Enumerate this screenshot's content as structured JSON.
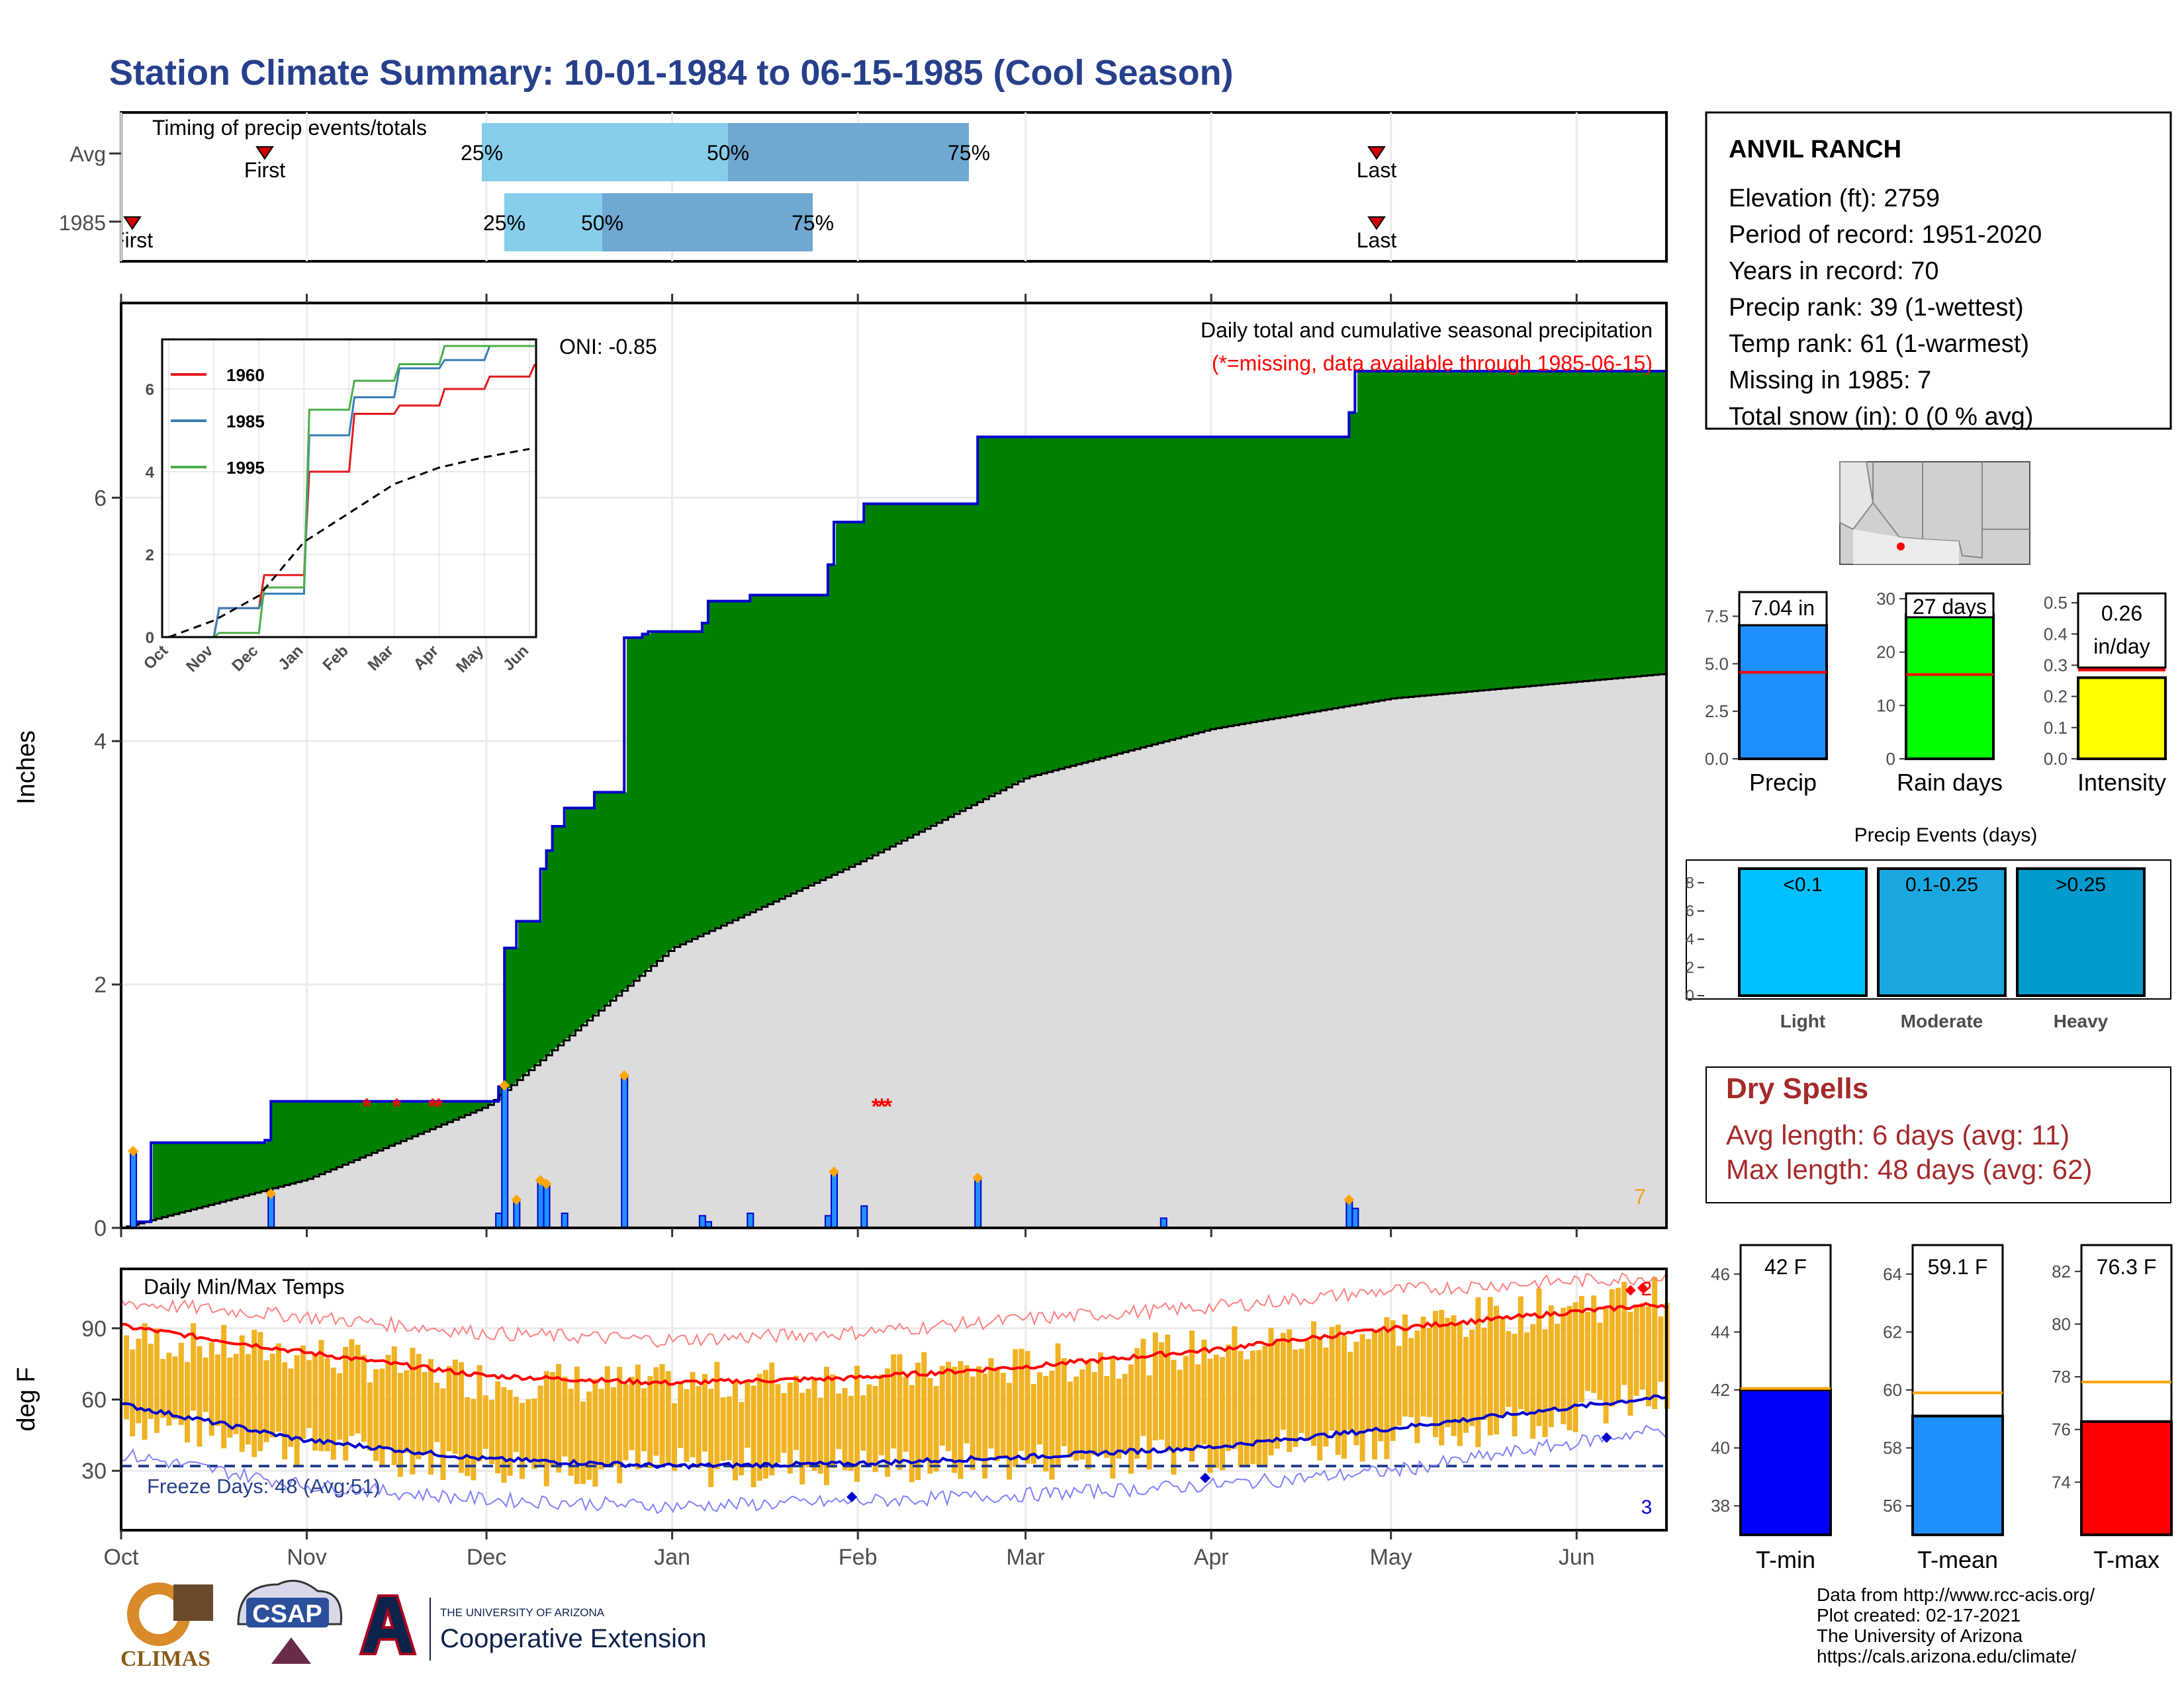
{
  "page": {
    "title": "Station Climate Summary: 10-01-1984 to 06-15-1985 (Cool Season)"
  },
  "timing_panel": {
    "title": "Timing of precip events/totals",
    "row_labels": [
      "Avg",
      "1985"
    ],
    "avg": {
      "first_label": "First",
      "last_label": "Last",
      "p25": "25%",
      "p50": "50%",
      "p75": "75%"
    },
    "year": {
      "first_label": "First",
      "last_label": "Last",
      "p25": "25%",
      "p50": "50%",
      "p75": "75%"
    }
  },
  "precip_panel": {
    "ylabel": "Inches",
    "oni": "ONI: -0.85",
    "caption1": "Daily total and cumulative seasonal precipitation",
    "caption2": "(*=missing, data available through 1985-06-15)",
    "missing_count": "7",
    "month_ticks": [
      "Oct",
      "Nov",
      "Dec",
      "Jan",
      "Feb",
      "Mar",
      "Apr",
      "May",
      "Jun"
    ],
    "y_ticks": [
      "0",
      "2",
      "4",
      "6"
    ]
  },
  "inset": {
    "legend": [
      "1960",
      "1985",
      "1995"
    ],
    "x_ticks": [
      "Oct",
      "Nov",
      "Dec",
      "Jan",
      "Feb",
      "Mar",
      "Apr",
      "May",
      "Jun"
    ],
    "y_ticks": [
      "0",
      "2",
      "4",
      "6"
    ]
  },
  "temp_panel": {
    "ylabel": "deg F",
    "title": "Daily Min/Max Temps",
    "freeze": "Freeze Days: 48 (Avg:51)",
    "count_top": "2",
    "count_bottom": "3",
    "y_ticks": [
      "30",
      "60",
      "90"
    ]
  },
  "station": {
    "name": "ANVIL RANCH",
    "lines": [
      "Elevation (ft): 2759",
      "Period of record: 1951-2020",
      "Years in record: 70",
      "Precip rank: 39 (1-wettest)",
      "Temp rank: 61 (1-warmest)",
      "Missing in 1985: 7",
      "Total snow (in): 0 (0 % avg)"
    ]
  },
  "mini_bars": {
    "precip": {
      "label": "Precip",
      "value_text": "7.04 in",
      "value": 7.04,
      "avg": 4.55,
      "max": 8.7,
      "ticks": [
        "0.0",
        "2.5",
        "5.0",
        "7.5"
      ]
    },
    "raindays": {
      "label": "Rain days",
      "value_text": "27 days",
      "value": 27,
      "avg": 15.8,
      "max": 31,
      "ticks": [
        "0",
        "10",
        "20",
        "30"
      ]
    },
    "intensity": {
      "label": "Intensity",
      "value_text": "0.26",
      "value_text2": "in/day",
      "value": 0.26,
      "avg": 0.285,
      "max": 0.53,
      "ticks": [
        "0.0",
        "0.1",
        "0.2",
        "0.3",
        "0.4",
        "0.5"
      ]
    }
  },
  "events": {
    "title": "Precip Events (days)",
    "ticks": [
      "0",
      "2",
      "4",
      "6",
      "8"
    ],
    "bars": [
      {
        "label": "Light",
        "tag": "<0.1",
        "value": 9
      },
      {
        "label": "Moderate",
        "tag": "0.1-0.25",
        "value": 9
      },
      {
        "label": "Heavy",
        "tag": ">0.25",
        "value": 9
      }
    ]
  },
  "dry_spells": {
    "title": "Dry Spells",
    "avg": "Avg length: 6 days (avg: 11)",
    "max": "Max length: 48 days (avg: 62)"
  },
  "temp_bars": {
    "tmin": {
      "label": "T-min",
      "value_text": "42 F",
      "value": 42.0,
      "avg": 42.05,
      "ticks": [
        "38",
        "40",
        "42",
        "44",
        "46"
      ]
    },
    "tmean": {
      "label": "T-mean",
      "value_text": "59.1 F",
      "value": 59.1,
      "avg": 59.9,
      "ticks": [
        "56",
        "58",
        "60",
        "62",
        "64"
      ]
    },
    "tmax": {
      "label": "T-max",
      "value_text": "76.3 F",
      "value": 76.3,
      "avg": 77.8,
      "ticks": [
        "74",
        "76",
        "78",
        "80",
        "82"
      ]
    }
  },
  "footer": {
    "lines": [
      "Data from http://www.rcc-acis.org/",
      "Plot created: 02-17-2021",
      "The University of Arizona",
      "https://cals.arizona.edu/climate/"
    ],
    "logo_climas": "CLIMAS",
    "logo_csap": "CSAP",
    "logo_ua_small": "THE UNIVERSITY OF ARIZONA",
    "logo_ua_big": "Cooperative Extension"
  },
  "colors": {
    "title": "#27408b",
    "green_fill": "#008000",
    "cum_line": "#0000cd",
    "avg_fill": "#dcdcdc",
    "bar_blue": "#1e90ff",
    "tmax_red": "#ff0000",
    "range_orange": "#f0b324",
    "light_blue": "#87ceeb",
    "mid_blue": "#6fa8d1"
  },
  "chart_data": [
    {
      "type": "line",
      "title": "Daily total and cumulative seasonal precipitation",
      "ylabel": "Inches",
      "ylim": [
        0,
        7.5
      ],
      "series": [
        {
          "name": "1985 cumulative",
          "x": [
            "1984-10-01",
            "1984-10-03",
            "1984-10-06",
            "1984-10-25",
            "1984-10-26",
            "1984-12-03",
            "1984-12-04",
            "1984-12-06",
            "1984-12-10",
            "1984-12-11",
            "1984-12-12",
            "1984-12-14",
            "1984-12-19",
            "1984-12-24",
            "1984-12-27",
            "1984-12-28",
            "1985-01-06",
            "1985-01-07",
            "1985-01-14",
            "1985-01-27",
            "1985-01-28",
            "1985-02-02",
            "1985-02-21",
            "1985-04-24",
            "1985-04-25",
            "1985-06-15"
          ],
          "y": [
            0,
            0.05,
            0.7,
            0.72,
            1.04,
            1.16,
            2.3,
            2.52,
            2.95,
            3.1,
            3.3,
            3.45,
            3.58,
            4.85,
            4.88,
            4.9,
            4.97,
            5.15,
            5.2,
            5.45,
            5.8,
            5.95,
            6.5,
            6.7,
            7.04,
            7.04
          ]
        },
        {
          "name": "average cumulative",
          "x": [
            "1984-10-01",
            "1984-11-01",
            "1984-12-01",
            "1985-01-01",
            "1985-02-01",
            "1985-03-01",
            "1985-04-01",
            "1985-05-01",
            "1985-06-15"
          ],
          "y": [
            0,
            0.4,
            1.0,
            2.3,
            3.0,
            3.7,
            4.1,
            4.35,
            4.55
          ]
        }
      ],
      "daily_bars": {
        "x": [
          "1984-10-03",
          "1984-10-26",
          "1984-12-03",
          "1984-12-04",
          "1984-12-06",
          "1984-12-10",
          "1984-12-11",
          "1984-12-14",
          "1984-12-24",
          "1985-01-06",
          "1985-01-07",
          "1985-01-14",
          "1985-01-27",
          "1985-01-28",
          "1985-02-02",
          "1985-02-21",
          "1985-03-24",
          "1985-04-24",
          "1985-04-25"
        ],
        "y": [
          0.62,
          0.27,
          0.12,
          1.16,
          0.22,
          0.38,
          0.35,
          0.12,
          1.24,
          0.1,
          0.05,
          0.12,
          0.1,
          0.45,
          0.18,
          0.4,
          0.08,
          0.22,
          0.16
        ]
      },
      "missing_dates": [
        "1984-11-11",
        "1984-11-16",
        "1984-11-22",
        "1984-11-23",
        "1985-02-04",
        "1985-02-05",
        "1985-02-06"
      ]
    },
    {
      "type": "line",
      "title": "",
      "legend": [
        "1960",
        "1985",
        "1995"
      ],
      "ylim": [
        0,
        7.2
      ],
      "series": [
        {
          "name": "1960",
          "x": [
            "Oct",
            "Nov",
            "Dec",
            "Jan",
            "Feb",
            "Mar",
            "Apr",
            "May",
            "Jun"
          ],
          "y": [
            0,
            0.7,
            1.5,
            4.0,
            5.4,
            5.6,
            6.0,
            6.3,
            6.6
          ]
        },
        {
          "name": "1985",
          "x": [
            "Oct",
            "Nov",
            "Dec",
            "Jan",
            "Feb",
            "Mar",
            "Apr",
            "May",
            "Jun"
          ],
          "y": [
            0,
            0.7,
            1.05,
            4.88,
            5.8,
            6.5,
            6.7,
            7.04,
            7.04
          ]
        },
        {
          "name": "1995",
          "x": [
            "Oct",
            "Nov",
            "Dec",
            "Jan",
            "Feb",
            "Mar",
            "Apr",
            "May",
            "Jun"
          ],
          "y": [
            0,
            0.1,
            1.2,
            5.5,
            6.2,
            6.6,
            7.04,
            7.04,
            7.04
          ]
        },
        {
          "name": "average",
          "x": [
            "Oct",
            "Nov",
            "Dec",
            "Jan",
            "Feb",
            "Mar",
            "Apr",
            "May",
            "Jun"
          ],
          "y": [
            0,
            0.4,
            1.0,
            2.3,
            3.0,
            3.7,
            4.1,
            4.35,
            4.55
          ]
        }
      ]
    },
    {
      "type": "line",
      "title": "Daily Min/Max Temps",
      "ylabel": "deg F",
      "ylim": [
        5,
        115
      ],
      "freeze_threshold": 32,
      "series": [
        {
          "name": "normal max",
          "x": [
            "Oct",
            "Nov",
            "Dec",
            "Jan",
            "Feb",
            "Mar",
            "Apr",
            "May",
            "Jun"
          ],
          "y": [
            91,
            80,
            70,
            67,
            69,
            74,
            81,
            90,
            97
          ]
        },
        {
          "name": "normal min",
          "x": [
            "Oct",
            "Nov",
            "Dec",
            "Jan",
            "Feb",
            "Mar",
            "Apr",
            "May",
            "Jun"
          ],
          "y": [
            58,
            43,
            35,
            32,
            33,
            36,
            40,
            48,
            57
          ]
        },
        {
          "name": "record max",
          "x": [
            "Oct",
            "Nov",
            "Dec",
            "Jan",
            "Feb",
            "Mar",
            "Apr",
            "May",
            "Jun"
          ],
          "y": [
            101,
            95,
            88,
            85,
            88,
            94,
            99,
            106,
            110
          ]
        },
        {
          "name": "record min",
          "x": [
            "Oct",
            "Nov",
            "Dec",
            "Jan",
            "Feb",
            "Mar",
            "Apr",
            "May",
            "Jun"
          ],
          "y": [
            37,
            24,
            18,
            15,
            17,
            20,
            24,
            30,
            42
          ]
        }
      ],
      "range_bars_approx": {
        "x": [
          "Oct",
          "Nov",
          "Dec",
          "Jan",
          "Feb",
          "Mar",
          "Apr",
          "May",
          "Jun"
        ],
        "min": [
          52,
          40,
          33,
          31,
          32,
          34,
          38,
          44,
          55
        ],
        "max": [
          86,
          80,
          68,
          66,
          70,
          74,
          82,
          90,
          100
        ]
      }
    },
    {
      "type": "bar",
      "title": "Precip Events (days)",
      "categories": [
        "Light",
        "Moderate",
        "Heavy"
      ],
      "values": [
        9,
        9,
        9
      ],
      "ylim": [
        0,
        9
      ]
    },
    {
      "type": "bar",
      "categories": [
        "T-min",
        "T-mean",
        "T-max"
      ],
      "values": [
        42.0,
        59.1,
        76.3
      ],
      "averages": [
        42.05,
        59.9,
        77.8
      ]
    },
    {
      "type": "bar",
      "categories": [
        "Precip",
        "Rain days",
        "Intensity"
      ],
      "values": [
        7.04,
        27,
        0.26
      ],
      "averages": [
        4.55,
        15.8,
        0.285
      ]
    }
  ]
}
